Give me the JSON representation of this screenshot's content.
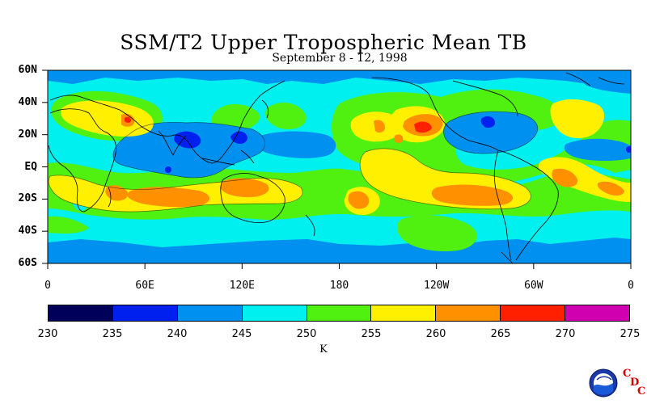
{
  "title": "SSM/T2 Upper Tropospheric Mean TB",
  "subtitle": "September 8 - 12, 1998",
  "map": {
    "lat_labels": [
      "60N",
      "40N",
      "20N",
      "EQ",
      "20S",
      "40S",
      "60S"
    ],
    "lon_labels": [
      "0",
      "60E",
      "120E",
      "180",
      "120W",
      "60W",
      "0"
    ]
  },
  "colorbar": {
    "ticks": [
      "230",
      "235",
      "240",
      "245",
      "250",
      "255",
      "260",
      "265",
      "270",
      "275"
    ],
    "colors": [
      "#00005a",
      "#0020f0",
      "#0090f0",
      "#00f0f0",
      "#50f010",
      "#fff000",
      "#ff9000",
      "#ff2000",
      "#d000b0"
    ],
    "unit": "K"
  },
  "logo": {
    "icon": "noaa-logo-icon",
    "letters": [
      "C",
      "D",
      "C"
    ]
  }
}
